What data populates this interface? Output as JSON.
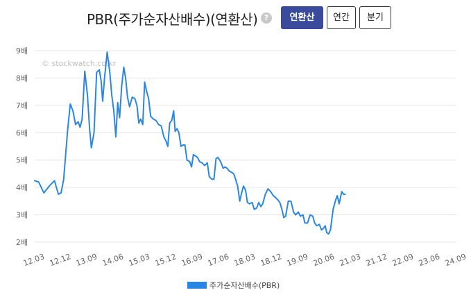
{
  "header": {
    "title": "PBR(주가순자산배수)(연환산)",
    "help_icon": "?",
    "tabs": [
      {
        "label": "연환산",
        "active": true
      },
      {
        "label": "연간",
        "active": false
      },
      {
        "label": "분기",
        "active": false
      }
    ]
  },
  "chart_data": {
    "type": "line",
    "watermark": "© stockwatch.co.kr",
    "y_ticks": [
      "2배",
      "3배",
      "4배",
      "5배",
      "6배",
      "7배",
      "8배",
      "9배"
    ],
    "ylim": [
      2,
      9
    ],
    "x_ticks": [
      "12.03",
      "12.12",
      "13.09",
      "14.06",
      "15.03",
      "15.12",
      "16.09",
      "17.06",
      "18.03",
      "18.12",
      "19.09",
      "20.06",
      "21.03",
      "21.12",
      "22.09",
      "23.06",
      "24.09"
    ],
    "grid": true,
    "legend_position": "bottom",
    "color": "#2b86e3",
    "series": [
      {
        "name": "주가순자산배수(PBR)",
        "points": [
          [
            0.0,
            4.25
          ],
          [
            0.15,
            4.2
          ],
          [
            0.35,
            3.8
          ],
          [
            0.55,
            4.05
          ],
          [
            0.75,
            4.25
          ],
          [
            0.9,
            3.75
          ],
          [
            1.0,
            3.8
          ],
          [
            1.1,
            4.3
          ],
          [
            1.25,
            6.1
          ],
          [
            1.35,
            7.05
          ],
          [
            1.45,
            6.8
          ],
          [
            1.55,
            6.3
          ],
          [
            1.65,
            6.4
          ],
          [
            1.72,
            6.2
          ],
          [
            1.8,
            6.5
          ],
          [
            1.9,
            8.25
          ],
          [
            2.0,
            7.4
          ],
          [
            2.08,
            6.2
          ],
          [
            2.15,
            5.45
          ],
          [
            2.25,
            6.0
          ],
          [
            2.35,
            8.2
          ],
          [
            2.45,
            8.3
          ],
          [
            2.52,
            7.9
          ],
          [
            2.58,
            7.15
          ],
          [
            2.65,
            8.0
          ],
          [
            2.75,
            8.95
          ],
          [
            2.85,
            8.2
          ],
          [
            2.92,
            7.4
          ],
          [
            3.0,
            6.8
          ],
          [
            3.08,
            5.85
          ],
          [
            3.15,
            7.1
          ],
          [
            3.22,
            6.55
          ],
          [
            3.3,
            7.7
          ],
          [
            3.38,
            8.4
          ],
          [
            3.45,
            8.0
          ],
          [
            3.52,
            7.3
          ],
          [
            3.6,
            6.95
          ],
          [
            3.7,
            7.3
          ],
          [
            3.8,
            7.25
          ],
          [
            3.88,
            7.0
          ],
          [
            3.95,
            6.35
          ],
          [
            4.02,
            6.5
          ],
          [
            4.1,
            6.3
          ],
          [
            4.17,
            7.85
          ],
          [
            4.25,
            7.5
          ],
          [
            4.32,
            7.25
          ],
          [
            4.4,
            6.6
          ],
          [
            4.5,
            6.5
          ],
          [
            4.6,
            6.45
          ],
          [
            4.7,
            6.3
          ],
          [
            4.8,
            6.25
          ],
          [
            4.9,
            5.85
          ],
          [
            4.98,
            5.7
          ],
          [
            5.05,
            5.5
          ],
          [
            5.12,
            6.35
          ],
          [
            5.2,
            6.45
          ],
          [
            5.27,
            6.8
          ],
          [
            5.33,
            6.05
          ],
          [
            5.4,
            6.15
          ],
          [
            5.47,
            6.0
          ],
          [
            5.55,
            5.5
          ],
          [
            5.62,
            5.55
          ],
          [
            5.7,
            5.55
          ],
          [
            5.78,
            5.0
          ],
          [
            5.88,
            4.95
          ],
          [
            5.95,
            4.75
          ],
          [
            6.02,
            5.2
          ],
          [
            6.1,
            5.15
          ],
          [
            6.18,
            5.1
          ],
          [
            6.25,
            4.95
          ],
          [
            6.35,
            4.9
          ],
          [
            6.45,
            4.8
          ],
          [
            6.55,
            4.9
          ],
          [
            6.62,
            4.4
          ],
          [
            6.72,
            4.3
          ],
          [
            6.8,
            4.3
          ],
          [
            6.88,
            5.05
          ],
          [
            6.95,
            5.1
          ],
          [
            7.05,
            4.95
          ],
          [
            7.15,
            4.7
          ],
          [
            7.22,
            4.75
          ],
          [
            7.3,
            4.7
          ],
          [
            7.38,
            4.6
          ],
          [
            7.48,
            4.55
          ],
          [
            7.55,
            4.5
          ],
          [
            7.62,
            4.3
          ],
          [
            7.7,
            4.05
          ],
          [
            7.78,
            3.5
          ],
          [
            7.85,
            3.8
          ],
          [
            7.92,
            4.05
          ],
          [
            8.0,
            3.9
          ],
          [
            8.07,
            3.45
          ],
          [
            8.15,
            3.4
          ],
          [
            8.25,
            3.45
          ],
          [
            8.33,
            3.2
          ],
          [
            8.42,
            3.25
          ],
          [
            8.5,
            3.45
          ],
          [
            8.58,
            3.3
          ],
          [
            8.65,
            3.4
          ],
          [
            8.75,
            3.75
          ],
          [
            8.85,
            3.95
          ],
          [
            8.95,
            3.85
          ],
          [
            9.05,
            3.7
          ],
          [
            9.12,
            3.65
          ],
          [
            9.22,
            3.55
          ],
          [
            9.3,
            3.45
          ],
          [
            9.38,
            3.2
          ],
          [
            9.45,
            2.9
          ],
          [
            9.52,
            2.95
          ],
          [
            9.62,
            3.5
          ],
          [
            9.72,
            3.5
          ],
          [
            9.82,
            3.1
          ],
          [
            9.9,
            3.0
          ],
          [
            10.0,
            3.1
          ],
          [
            10.08,
            2.95
          ],
          [
            10.18,
            3.0
          ],
          [
            10.25,
            2.7
          ],
          [
            10.35,
            2.7
          ],
          [
            10.45,
            3.0
          ],
          [
            10.55,
            2.95
          ],
          [
            10.62,
            2.7
          ],
          [
            10.7,
            2.6
          ],
          [
            10.8,
            2.65
          ],
          [
            10.88,
            2.45
          ],
          [
            10.95,
            2.5
          ],
          [
            11.02,
            2.6
          ],
          [
            11.08,
            2.35
          ],
          [
            11.15,
            2.3
          ],
          [
            11.22,
            2.45
          ],
          [
            11.32,
            3.2
          ],
          [
            11.42,
            3.55
          ],
          [
            11.48,
            3.7
          ],
          [
            11.55,
            3.4
          ],
          [
            11.65,
            3.85
          ],
          [
            11.72,
            3.75
          ],
          [
            11.78,
            3.75
          ]
        ]
      }
    ]
  }
}
